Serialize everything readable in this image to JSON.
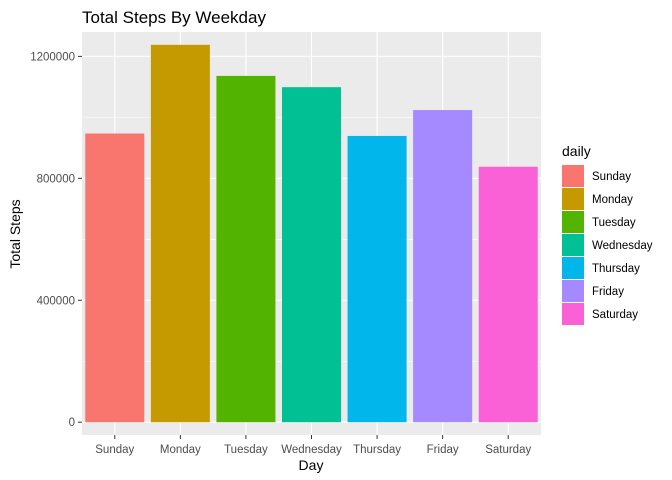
{
  "chart_data": {
    "type": "bar",
    "title": "Total Steps By Weekday",
    "xlabel": "Day",
    "ylabel": "Total Steps",
    "categories": [
      "Sunday",
      "Monday",
      "Tuesday",
      "Wednesday",
      "Thursday",
      "Friday",
      "Saturday"
    ],
    "values": [
      947000,
      1238000,
      1136000,
      1099000,
      939000,
      1024000,
      838000
    ],
    "colors": [
      "#F8766D",
      "#C49A00",
      "#53B400",
      "#00C094",
      "#00B6EB",
      "#A58AFF",
      "#FB61D7"
    ],
    "ylim": [
      -42000,
      1280000
    ],
    "yticks": [
      0,
      400000,
      800000,
      1200000
    ],
    "ytick_labels": [
      "0",
      "400000",
      "800000",
      "1200000"
    ],
    "grid": true,
    "panel_background": "#EBEBEB",
    "legend": {
      "title": "daily",
      "position": "right",
      "entries": [
        "Sunday",
        "Monday",
        "Tuesday",
        "Wednesday",
        "Thursday",
        "Friday",
        "Saturday"
      ]
    }
  }
}
